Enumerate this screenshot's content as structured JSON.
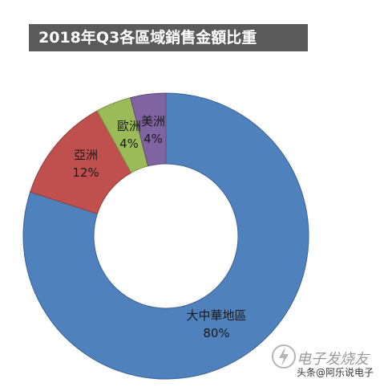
{
  "title": "2018年Q3各區域銷售金額比重",
  "chart_data": {
    "type": "pie",
    "donut": true,
    "start": "12 o'clock, clockwise",
    "slices": [
      {
        "label": "大中華地區",
        "value": 80,
        "value_label": "80%",
        "color": "#4f81bd",
        "stroke": "#3a6494"
      },
      {
        "label": "亞洲",
        "value": 12,
        "value_label": "12%",
        "color": "#c0504d",
        "stroke": "#943c3a"
      },
      {
        "label": "歐洲",
        "value": 4,
        "value_label": "4%",
        "color": "#9bbb59",
        "stroke": "#76913f"
      },
      {
        "label": "美洲",
        "value": 4,
        "value_label": "4%",
        "color": "#8064a2",
        "stroke": "#5f4a7b"
      }
    ]
  },
  "watermark": {
    "brand": "电子发烧友",
    "source": "头条@阿乐说电子"
  }
}
